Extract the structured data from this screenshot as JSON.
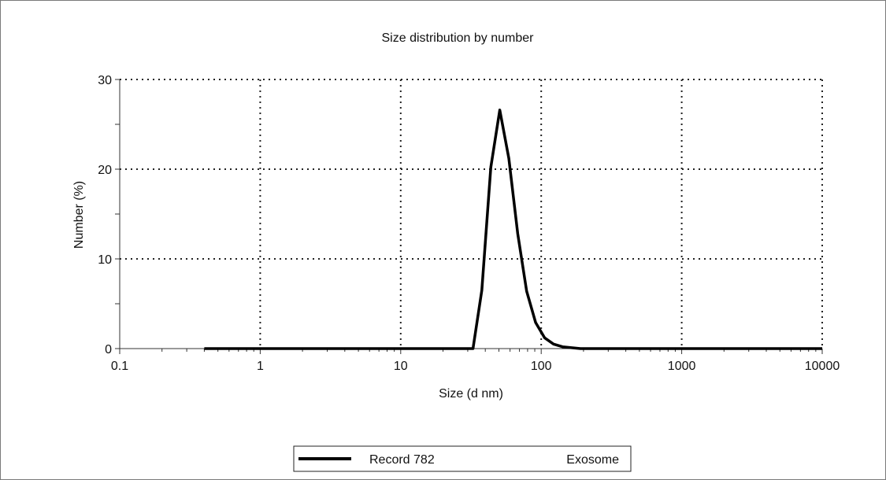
{
  "chart_data": {
    "type": "line",
    "title": "Size distribution by number",
    "xlabel": "Size (d nm)",
    "ylabel": "Number (%)",
    "x_scale": "log",
    "xlim": [
      0.1,
      10000
    ],
    "ylim": [
      0,
      30
    ],
    "x_ticks": [
      0.1,
      1,
      10,
      100,
      1000,
      10000
    ],
    "x_tick_labels": [
      "0.1",
      "1",
      "10",
      "100",
      "1000",
      "10000"
    ],
    "y_ticks": [
      0,
      10,
      20,
      30
    ],
    "y_tick_labels": [
      "0",
      "10",
      "20",
      "30"
    ],
    "grid": true,
    "legend_position": "bottom-center",
    "series": [
      {
        "name": "Record 782",
        "sample": "Exosome",
        "color": "#000000",
        "x": [
          0.4,
          1,
          10,
          28,
          32.7,
          37.8,
          43.8,
          50.7,
          58.8,
          68.1,
          78.8,
          91.3,
          105.7,
          122.4,
          141.8,
          164.2,
          190.1,
          250,
          500,
          1000,
          5000,
          10000
        ],
        "y": [
          0,
          0,
          0,
          0,
          0,
          6.5,
          20.2,
          26.6,
          21.2,
          12.8,
          6.4,
          2.9,
          1.2,
          0.5,
          0.2,
          0.1,
          0,
          0,
          0,
          0,
          0,
          0
        ]
      }
    ]
  }
}
